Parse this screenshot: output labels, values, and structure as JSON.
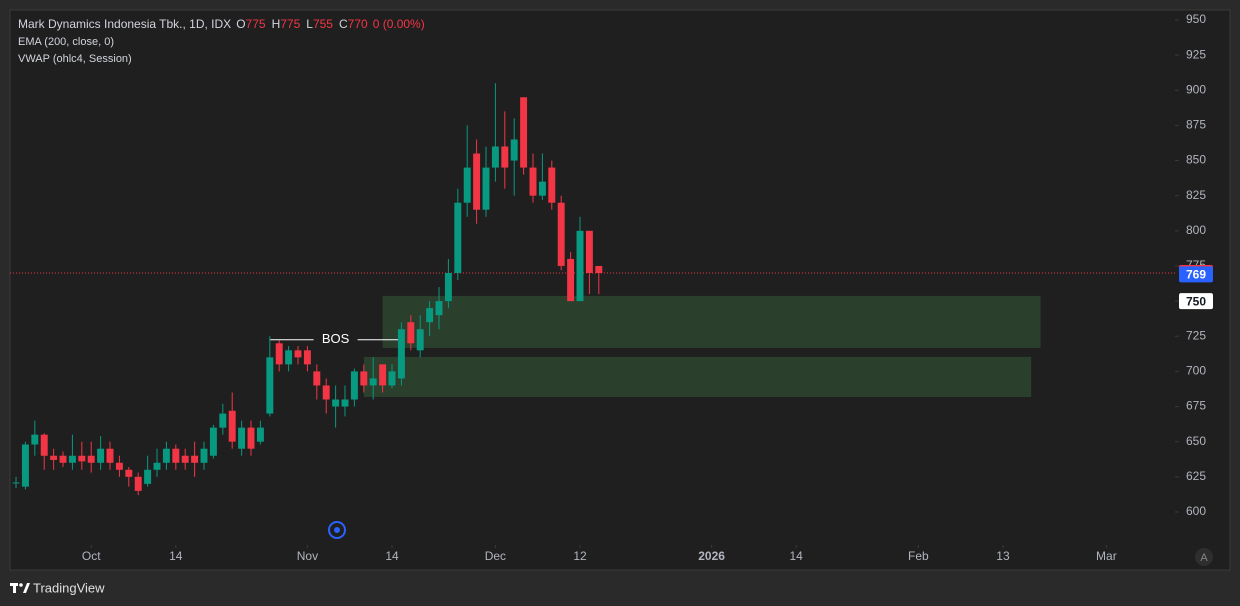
{
  "chart_data": {
    "type": "candlestick",
    "title": "Mark Dynamics Indonesia Tbk., 1D, IDX",
    "legend_values": [
      {
        "key": "O",
        "value": 775
      },
      {
        "key": "H",
        "value": 775
      },
      {
        "key": "L",
        "value": 755
      },
      {
        "key": "C",
        "value": 770
      }
    ],
    "change": "0 (0.00%)",
    "indicators": [
      "EMA (200, close, 0)",
      "VWAP (ohlc4, Session)"
    ],
    "up_color": "#089981",
    "down_color": "#f23645",
    "open": [
      621,
      618,
      648,
      655,
      640,
      640,
      635,
      640,
      640,
      635,
      645,
      635,
      630,
      625,
      620,
      630,
      635,
      645,
      640,
      640,
      635,
      640,
      660,
      672,
      645,
      660,
      650,
      670,
      720,
      705,
      715,
      715,
      700,
      690,
      675,
      675,
      680,
      700,
      690,
      705,
      690,
      695,
      735,
      715,
      735,
      740,
      750,
      770,
      820,
      855,
      815,
      845,
      860,
      850,
      895,
      845,
      825,
      845,
      820,
      780,
      750,
      800,
      775
    ],
    "high": [
      625,
      650,
      665,
      656,
      645,
      643,
      655,
      650,
      650,
      654,
      650,
      640,
      632,
      628,
      640,
      645,
      650,
      648,
      645,
      650,
      650,
      662,
      677,
      685,
      665,
      665,
      665,
      725,
      722,
      718,
      718,
      718,
      705,
      695,
      690,
      690,
      702,
      705,
      710,
      705,
      705,
      735,
      740,
      740,
      750,
      760,
      780,
      830,
      875,
      865,
      860,
      905,
      885,
      880,
      895,
      855,
      855,
      850,
      825,
      785,
      810,
      800,
      775
    ],
    "low": [
      617,
      616,
      640,
      630,
      630,
      632,
      630,
      630,
      628,
      630,
      630,
      625,
      618,
      612,
      618,
      625,
      630,
      630,
      630,
      625,
      630,
      638,
      655,
      645,
      640,
      640,
      648,
      668,
      700,
      700,
      705,
      700,
      680,
      670,
      660,
      668,
      675,
      685,
      680,
      685,
      688,
      690,
      715,
      710,
      725,
      730,
      745,
      765,
      810,
      805,
      810,
      835,
      830,
      825,
      840,
      820,
      822,
      815,
      772,
      750,
      750,
      755,
      755
    ],
    "close": [
      621,
      648,
      655,
      640,
      637,
      635,
      640,
      636,
      635,
      645,
      635,
      630,
      625,
      615,
      630,
      635,
      645,
      635,
      635,
      635,
      645,
      660,
      670,
      650,
      660,
      645,
      660,
      710,
      705,
      715,
      710,
      705,
      690,
      680,
      680,
      680,
      700,
      690,
      695,
      690,
      700,
      730,
      720,
      730,
      745,
      750,
      770,
      820,
      845,
      815,
      845,
      860,
      845,
      865,
      845,
      825,
      835,
      820,
      775,
      750,
      800,
      770,
      770
    ],
    "ylim": [
      576.5,
      957.1
    ],
    "yticks": [
      600,
      625,
      650,
      675,
      700,
      725,
      750,
      775,
      800,
      825,
      850,
      875,
      900,
      925,
      950
    ],
    "xlim": [
      -0.64,
      123.3
    ],
    "xticks": [
      {
        "value": 8,
        "label": "Oct"
      },
      {
        "value": 17,
        "label": "14"
      },
      {
        "value": 31,
        "label": "Nov"
      },
      {
        "value": 40,
        "label": "14"
      },
      {
        "value": 51,
        "label": "Dec"
      },
      {
        "value": 60,
        "label": "12"
      },
      {
        "value": 74,
        "label": "2026"
      },
      {
        "value": 83,
        "label": "14"
      },
      {
        "value": 96,
        "label": "Feb"
      },
      {
        "value": 105,
        "label": "13"
      },
      {
        "value": 116,
        "label": "Mar"
      }
    ],
    "zones": [
      {
        "start": 39,
        "end": 109,
        "low": 716.7,
        "high": 753.7,
        "color": "#2b3f2d"
      },
      {
        "start": 37,
        "end": 108,
        "low": 681.8,
        "high": 710.3,
        "color": "#2b3f2d"
      }
    ],
    "bos": {
      "text": "BOS",
      "value": 722.5,
      "start": 27,
      "end": 41
    },
    "last_price_line": {
      "value": 770,
      "color": "#f23645"
    },
    "price_labels": [
      {
        "value": 770,
        "color": "#f23645",
        "text_color": "#ffffff"
      },
      {
        "value": 769,
        "color": "#2962ff",
        "text_color": "#ffffff"
      },
      {
        "value": 750,
        "color": "#ffffff",
        "text_color": "#131722"
      }
    ]
  },
  "footer": {
    "brand": "TradingView",
    "auto_button": "A"
  }
}
